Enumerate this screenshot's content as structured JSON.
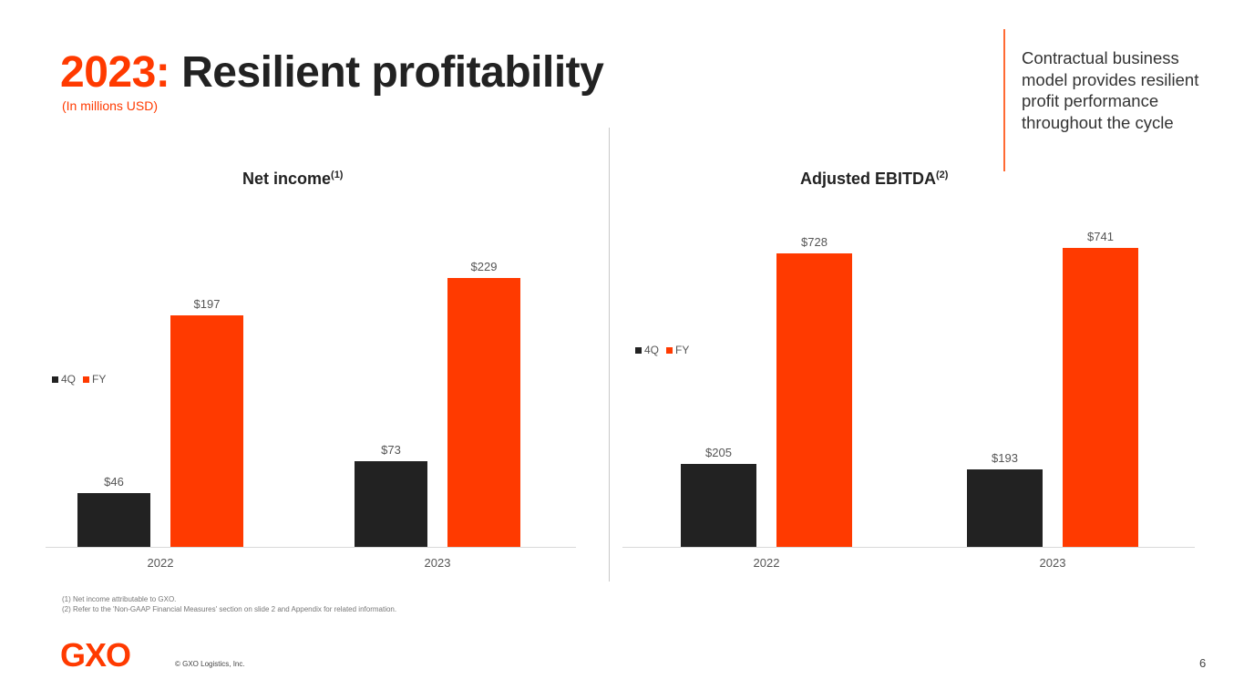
{
  "header": {
    "title_year": "2023:",
    "title_rest": " Resilient profitability",
    "subtitle": "(In millions USD)"
  },
  "callout": "Contractual business model provides resilient profit performance throughout the cycle",
  "footnotes": [
    "(1) Net income attributable to GXO.",
    "(2) Refer to the 'Non-GAAP Financial Measures' section on slide 2 and Appendix for related information."
  ],
  "footer": {
    "logo": "GXO",
    "copyright": "© GXO Logistics, Inc.",
    "page": "6"
  },
  "colors": {
    "4Q": "#222222",
    "FY": "#ff3a00"
  },
  "chart_data": [
    {
      "type": "bar",
      "title": "Net income",
      "title_sup": "(1)",
      "categories": [
        "2022",
        "2023"
      ],
      "series": [
        {
          "name": "4Q",
          "values": [
            46,
            73
          ],
          "labels": [
            "$46",
            "$73"
          ]
        },
        {
          "name": "FY",
          "values": [
            197,
            229
          ],
          "labels": [
            "$197",
            "$229"
          ]
        }
      ],
      "legend": "left",
      "ylim": [
        0,
        229
      ]
    },
    {
      "type": "bar",
      "title": "Adjusted EBITDA",
      "title_sup": "(2)",
      "categories": [
        "2022",
        "2023"
      ],
      "series": [
        {
          "name": "4Q",
          "values": [
            205,
            193
          ],
          "labels": [
            "$205",
            "$193"
          ]
        },
        {
          "name": "FY",
          "values": [
            728,
            741
          ],
          "labels": [
            "$728",
            "$741"
          ]
        }
      ],
      "legend": "left",
      "ylim": [
        0,
        741
      ]
    }
  ]
}
